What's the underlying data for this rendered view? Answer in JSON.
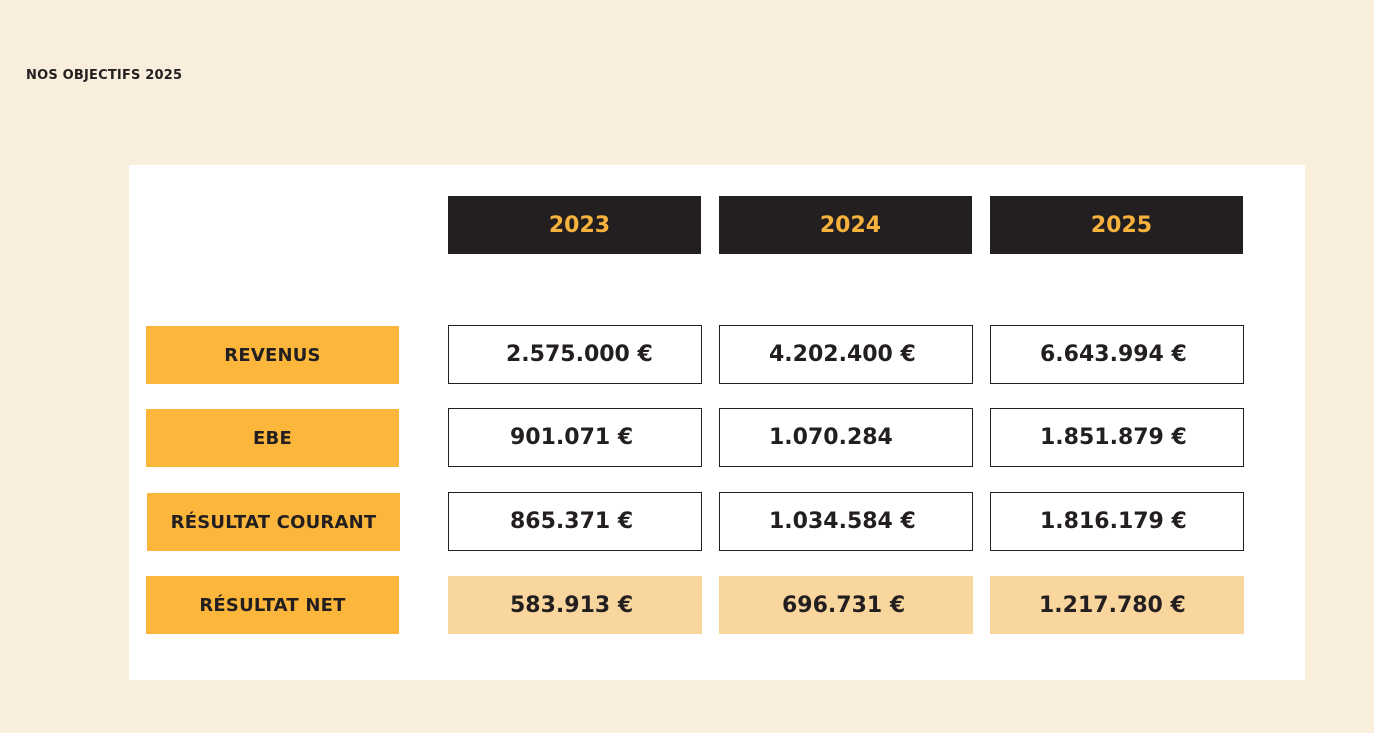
{
  "page": {
    "title": "NOS OBJECTIFS 2025"
  },
  "table": {
    "years": [
      "2023",
      "2024",
      "2025"
    ],
    "rows": [
      {
        "label": "REVENUS",
        "values": [
          "2.575.000 €",
          "4.202.400 €",
          "6.643.994 €"
        ]
      },
      {
        "label": "EBE",
        "values": [
          "901.071 €",
          "1.070.284",
          "1.851.879 €"
        ]
      },
      {
        "label": "RÉSULTAT COURANT",
        "values": [
          "865.371 €",
          "1.034.584 €",
          "1.816.179 €"
        ]
      },
      {
        "label": "RÉSULTAT NET",
        "values": [
          "583.913 €",
          "696.731 €",
          "1.217.780 €"
        ]
      }
    ]
  },
  "colors": {
    "background": "#f9eedb",
    "panel": "#ffffff",
    "header_fill": "#231f20",
    "header_text": "#f6b23c",
    "label_fill": "#fbb63b",
    "net_fill": "#fad69f",
    "text": "#231f20"
  }
}
